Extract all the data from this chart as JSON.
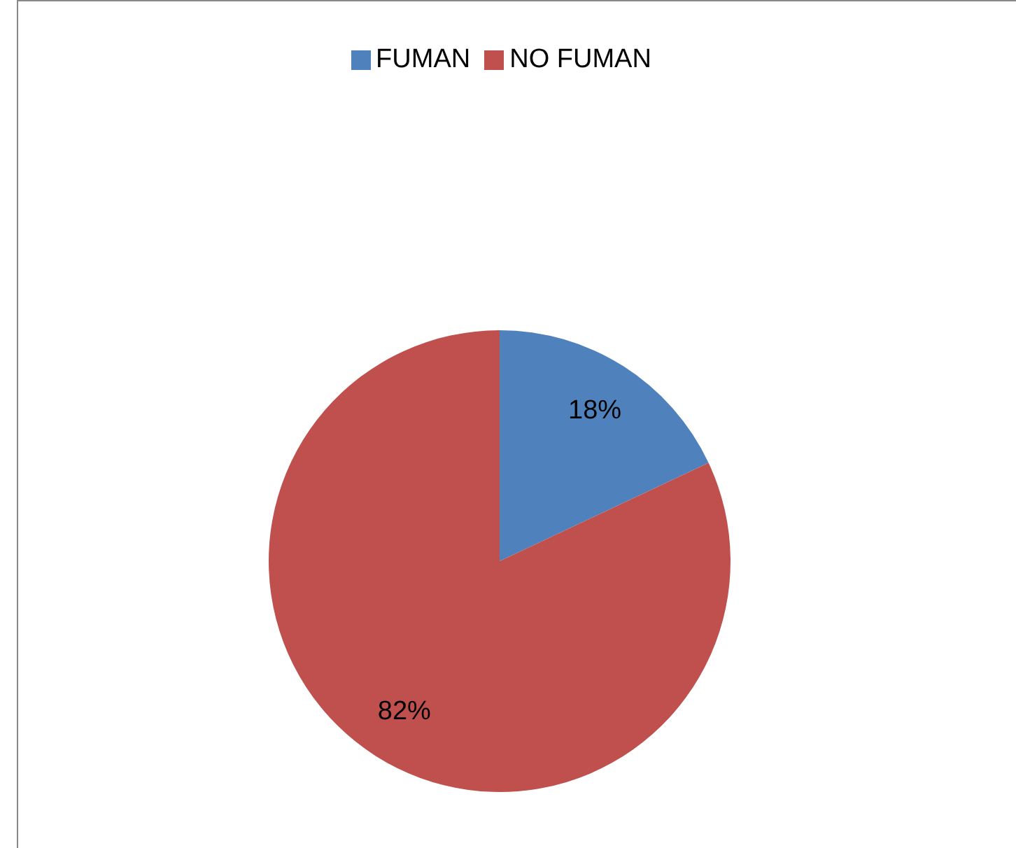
{
  "chart_data": {
    "type": "pie",
    "categories": [
      "FUMAN",
      "NO FUMAN"
    ],
    "values": [
      18,
      82
    ],
    "colors": [
      "#4f81bd",
      "#c0504d"
    ],
    "value_labels": [
      "18%",
      "82%"
    ],
    "legend": "top"
  }
}
